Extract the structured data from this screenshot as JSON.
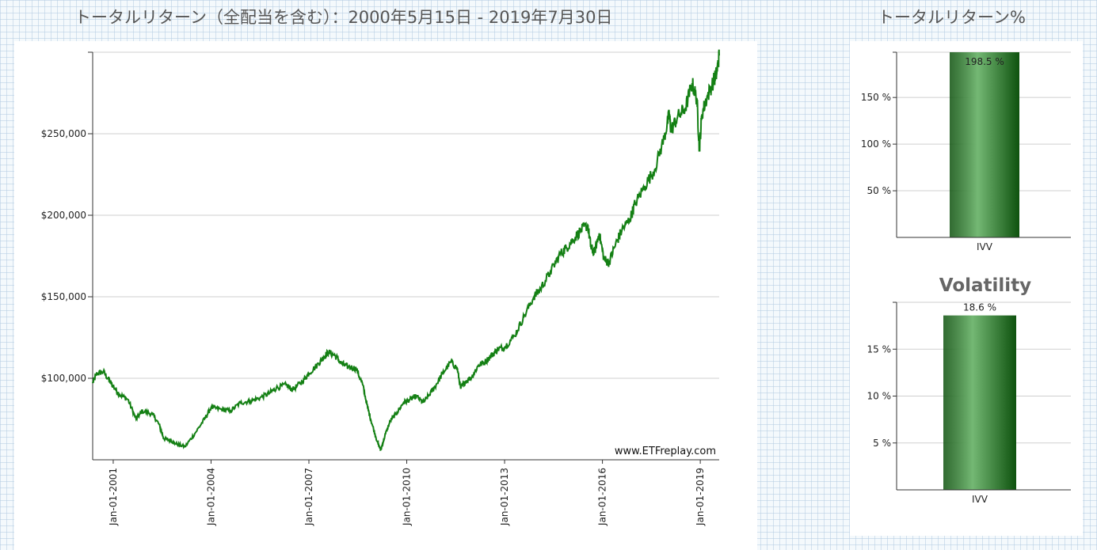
{
  "main_title": "トータルリターン（全配当を含む）：2000年5月15日 - 2019年7月30日",
  "side_title": "トータルリターン%",
  "watermark": "www.ETFreplay.com",
  "colors": {
    "line": "#148014",
    "bar_dark": "#0e520e",
    "bar_light": "#74b874",
    "grid": "#cfcfcf"
  },
  "chart_data": [
    {
      "type": "line",
      "title": "トータルリターン（全配当を含む）：2000年5月15日 - 2019年7月30日",
      "x_tick_labels": [
        "Jan-01-2001",
        "Jan-01-2004",
        "Jan-01-2007",
        "Jan-01-2010",
        "Jan-01-2013",
        "Jan-01-2016",
        "Jan-01-2019"
      ],
      "x_tick_years": [
        2001,
        2004,
        2007,
        2010,
        2013,
        2016,
        2019
      ],
      "xlim": [
        2000.37,
        2019.58
      ],
      "y_tick_labels": [
        "$100,000",
        "$150,000",
        "$200,000",
        "$250,000"
      ],
      "y_ticks": [
        100000,
        150000,
        200000,
        250000
      ],
      "ylim": [
        50000,
        300000
      ],
      "grid": true,
      "series": [
        {
          "x": [
            2000.37,
            2000.5,
            2000.7,
            2000.9,
            2001.0,
            2001.2,
            2001.45,
            2001.7,
            2001.9,
            2002.2,
            2002.4,
            2002.55,
            2002.75,
            2002.9,
            2003.2,
            2003.5,
            2003.8,
            2004.0,
            2004.3,
            2004.6,
            2004.9,
            2005.2,
            2005.5,
            2005.8,
            2006.0,
            2006.3,
            2006.5,
            2006.8,
            2007.0,
            2007.3,
            2007.45,
            2007.6,
            2007.8,
            2008.0,
            2008.2,
            2008.45,
            2008.65,
            2008.8,
            2008.95,
            2009.1,
            2009.2,
            2009.35,
            2009.5,
            2009.7,
            2009.9,
            2010.1,
            2010.3,
            2010.5,
            2010.7,
            2010.9,
            2011.1,
            2011.35,
            2011.55,
            2011.65,
            2011.8,
            2012.0,
            2012.2,
            2012.4,
            2012.6,
            2012.8,
            2013.0,
            2013.3,
            2013.6,
            2013.9,
            2014.1,
            2014.4,
            2014.7,
            2014.9,
            2015.1,
            2015.35,
            2015.55,
            2015.65,
            2015.75,
            2015.9,
            2016.05,
            2016.2,
            2016.4,
            2016.6,
            2016.85,
            2017.0,
            2017.3,
            2017.6,
            2017.9,
            2018.05,
            2018.1,
            2018.3,
            2018.55,
            2018.75,
            2018.9,
            2018.97,
            2019.05,
            2019.2,
            2019.4,
            2019.5,
            2019.58
          ],
          "values": [
            97000,
            103000,
            104000,
            98000,
            95000,
            90000,
            87000,
            75000,
            80000,
            78000,
            72000,
            63000,
            62000,
            60000,
            58000,
            66000,
            75000,
            82000,
            81000,
            80000,
            85000,
            86000,
            88000,
            91000,
            94000,
            96000,
            93000,
            98000,
            103000,
            109000,
            113000,
            116000,
            114000,
            109000,
            107000,
            106000,
            96000,
            82000,
            71000,
            61000,
            56000,
            66000,
            74000,
            79000,
            85000,
            87000,
            89000,
            85000,
            90000,
            96000,
            103000,
            110000,
            106000,
            94000,
            98000,
            101000,
            108000,
            110000,
            114000,
            118000,
            119000,
            126000,
            138000,
            150000,
            155000,
            165000,
            176000,
            180000,
            185000,
            191000,
            194000,
            180000,
            177000,
            189000,
            173000,
            171000,
            182000,
            191000,
            198000,
            207000,
            218000,
            228000,
            248000,
            262000,
            252000,
            260000,
            266000,
            281000,
            271000,
            240000,
            262000,
            272000,
            282000,
            287000,
            298000
          ]
        }
      ]
    },
    {
      "type": "bar",
      "title": "トータルリターン%",
      "categories": [
        "IVV"
      ],
      "values": [
        198.5
      ],
      "data_labels": [
        "198.5 %"
      ],
      "y_tick_labels": [
        "50 %",
        "100 %",
        "150 %"
      ],
      "y_ticks": [
        50,
        100,
        150
      ],
      "ylim": [
        0,
        198.5
      ],
      "grid": true
    },
    {
      "type": "bar",
      "title": "Volatility",
      "categories": [
        "IVV"
      ],
      "values": [
        18.6
      ],
      "data_labels": [
        "18.6 %"
      ],
      "y_tick_labels": [
        "5 %",
        "10 %",
        "15 %"
      ],
      "y_ticks": [
        5,
        10,
        15
      ],
      "ylim": [
        0,
        20
      ],
      "grid": true
    }
  ]
}
